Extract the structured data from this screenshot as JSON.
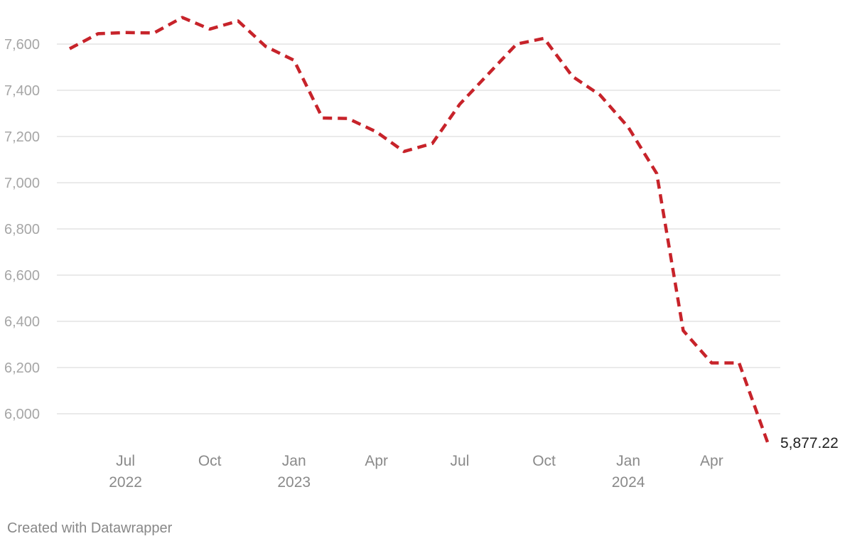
{
  "chart_data": {
    "type": "line",
    "title": "",
    "xlabel": "",
    "ylabel": "",
    "ylim": [
      5850,
      7720
    ],
    "yticks": [
      6000,
      6200,
      6400,
      6600,
      6800,
      7000,
      7200,
      7400,
      7600
    ],
    "ytick_labels": [
      "6,000",
      "6,200",
      "6,400",
      "6,600",
      "6,800",
      "7,000",
      "7,200",
      "7,400",
      "7,600"
    ],
    "xticks": [
      {
        "date": "2022-07-01",
        "label": "Jul",
        "year": "2022"
      },
      {
        "date": "2022-10-01",
        "label": "Oct",
        "year": ""
      },
      {
        "date": "2023-01-01",
        "label": "Jan",
        "year": "2023"
      },
      {
        "date": "2023-04-01",
        "label": "Apr",
        "year": ""
      },
      {
        "date": "2023-07-01",
        "label": "Jul",
        "year": ""
      },
      {
        "date": "2023-10-01",
        "label": "Oct",
        "year": ""
      },
      {
        "date": "2024-01-01",
        "label": "Jan",
        "year": "2024"
      },
      {
        "date": "2024-04-01",
        "label": "Apr",
        "year": ""
      }
    ],
    "grid": "horizontal",
    "series": [
      {
        "color": "#c7232a",
        "line_style": "dashed",
        "points": [
          {
            "x": "2022-05-01",
            "y": 7580
          },
          {
            "x": "2022-06-01",
            "y": 7645
          },
          {
            "x": "2022-07-01",
            "y": 7650
          },
          {
            "x": "2022-08-01",
            "y": 7648
          },
          {
            "x": "2022-09-01",
            "y": 7715
          },
          {
            "x": "2022-10-01",
            "y": 7665
          },
          {
            "x": "2022-11-01",
            "y": 7700
          },
          {
            "x": "2022-12-01",
            "y": 7590
          },
          {
            "x": "2023-01-01",
            "y": 7530
          },
          {
            "x": "2023-02-01",
            "y": 7280
          },
          {
            "x": "2023-03-01",
            "y": 7278
          },
          {
            "x": "2023-04-01",
            "y": 7220
          },
          {
            "x": "2023-05-01",
            "y": 7135
          },
          {
            "x": "2023-06-01",
            "y": 7170
          },
          {
            "x": "2023-07-01",
            "y": 7340
          },
          {
            "x": "2023-08-01",
            "y": 7470
          },
          {
            "x": "2023-09-01",
            "y": 7600
          },
          {
            "x": "2023-10-01",
            "y": 7625
          },
          {
            "x": "2023-11-01",
            "y": 7460
          },
          {
            "x": "2023-12-01",
            "y": 7380
          },
          {
            "x": "2024-01-01",
            "y": 7240
          },
          {
            "x": "2024-02-01",
            "y": 7040
          },
          {
            "x": "2024-03-01",
            "y": 6360
          },
          {
            "x": "2024-04-01",
            "y": 6220
          },
          {
            "x": "2024-05-01",
            "y": 6220
          },
          {
            "x": "2024-06-01",
            "y": 5877.22
          }
        ]
      }
    ],
    "end_label": "5,877.22"
  },
  "footer": {
    "credit": "Created with Datawrapper"
  }
}
